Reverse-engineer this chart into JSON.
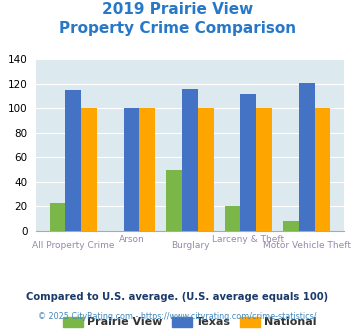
{
  "title_line1": "2019 Prairie View",
  "title_line2": "Property Crime Comparison",
  "categories": [
    "All Property Crime",
    "Arson",
    "Burglary",
    "Larceny & Theft",
    "Motor Vehicle Theft"
  ],
  "prairie_view": [
    23,
    0,
    50,
    20,
    8
  ],
  "texas": [
    115,
    100,
    116,
    112,
    121
  ],
  "national": [
    100,
    100,
    100,
    100,
    100
  ],
  "bar_colors": {
    "prairie_view": "#7ab648",
    "texas": "#4472c4",
    "national": "#ffa500"
  },
  "ylim": [
    0,
    140
  ],
  "yticks": [
    0,
    20,
    40,
    60,
    80,
    100,
    120,
    140
  ],
  "bg_color": "#dce9ee",
  "title_color": "#2878c8",
  "xlabel_color": "#9988aa",
  "legend_labels": [
    "Prairie View",
    "Texas",
    "National"
  ],
  "footnote1": "Compared to U.S. average. (U.S. average equals 100)",
  "footnote2": "© 2025 CityRating.com - https://www.cityrating.com/crime-statistics/",
  "footnote1_color": "#1a3a6a",
  "footnote2_color": "#4488bb"
}
